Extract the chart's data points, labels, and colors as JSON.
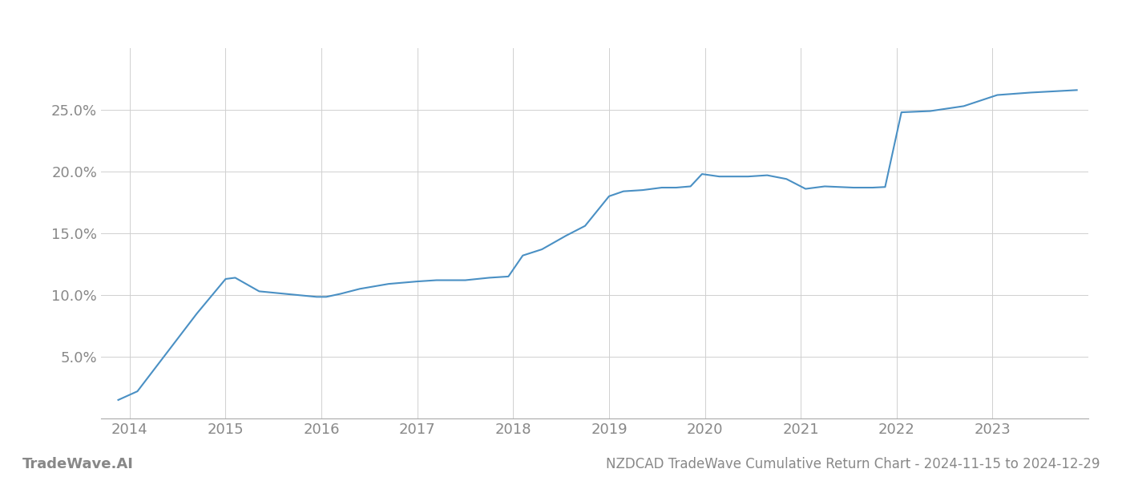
{
  "title": "NZDCAD TradeWave Cumulative Return Chart - 2024-11-15 to 2024-12-29",
  "watermark": "TradeWave.AI",
  "line_color": "#4a90c4",
  "background_color": "#ffffff",
  "grid_color": "#d0d0d0",
  "x_values": [
    2013.88,
    2014.08,
    2014.7,
    2015.0,
    2015.1,
    2015.35,
    2015.95,
    2016.05,
    2016.2,
    2016.4,
    2016.7,
    2016.85,
    2017.0,
    2017.2,
    2017.5,
    2017.75,
    2017.95,
    2018.1,
    2018.3,
    2018.55,
    2018.75,
    2019.0,
    2019.15,
    2019.35,
    2019.55,
    2019.7,
    2019.85,
    2019.97,
    2020.15,
    2020.45,
    2020.65,
    2020.85,
    2021.05,
    2021.25,
    2021.55,
    2021.75,
    2021.88,
    2022.05,
    2022.35,
    2022.7,
    2023.05,
    2023.4,
    2023.88
  ],
  "y_values": [
    1.5,
    2.2,
    8.5,
    11.3,
    11.4,
    10.3,
    9.85,
    9.85,
    10.1,
    10.5,
    10.9,
    11.0,
    11.1,
    11.2,
    11.2,
    11.4,
    11.5,
    13.2,
    13.7,
    14.8,
    15.6,
    18.0,
    18.4,
    18.5,
    18.7,
    18.7,
    18.8,
    19.8,
    19.6,
    19.6,
    19.7,
    19.4,
    18.6,
    18.8,
    18.7,
    18.7,
    18.75,
    24.8,
    24.9,
    25.3,
    26.2,
    26.4,
    26.6
  ],
  "xlim": [
    2013.7,
    2024.0
  ],
  "ylim": [
    0,
    30
  ],
  "yticks": [
    5.0,
    10.0,
    15.0,
    20.0,
    25.0
  ],
  "ytick_labels": [
    "5.0%",
    "10.0%",
    "15.0%",
    "20.0%",
    "25.0%"
  ],
  "xticks": [
    2014,
    2015,
    2016,
    2017,
    2018,
    2019,
    2020,
    2021,
    2022,
    2023
  ],
  "xtick_labels": [
    "2014",
    "2015",
    "2016",
    "2017",
    "2018",
    "2019",
    "2020",
    "2021",
    "2022",
    "2023"
  ],
  "tick_color": "#888888",
  "label_fontsize": 13,
  "title_fontsize": 12,
  "watermark_fontsize": 13,
  "line_width": 1.5
}
